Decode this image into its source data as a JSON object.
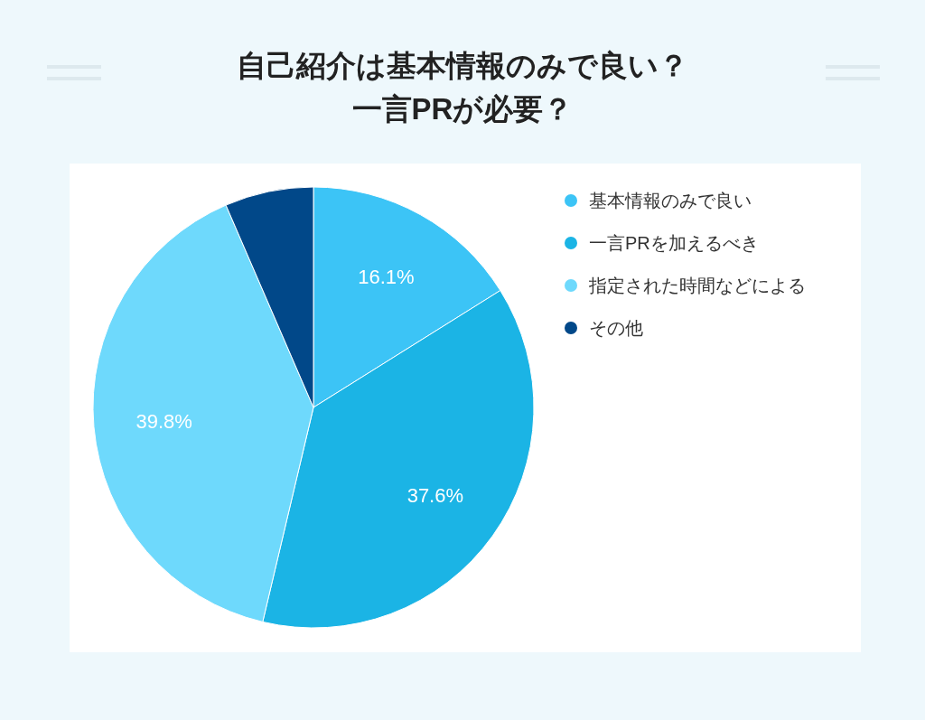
{
  "chart_data": {
    "type": "pie",
    "title": "自己紹介は基本情報のみで良い？一言PRが必要？",
    "categories": [
      "基本情報のみで良い",
      "一言PRを加えるべき",
      "指定された時間などによる",
      "その他"
    ],
    "values": [
      16.1,
      37.6,
      39.8,
      6.5
    ],
    "value_labels": [
      "16.1%",
      "37.6%",
      "39.8%",
      null
    ],
    "colors": [
      "#3cc4f6",
      "#1bb4e5",
      "#6ed9fc",
      "#014889"
    ],
    "legend": "right"
  }
}
